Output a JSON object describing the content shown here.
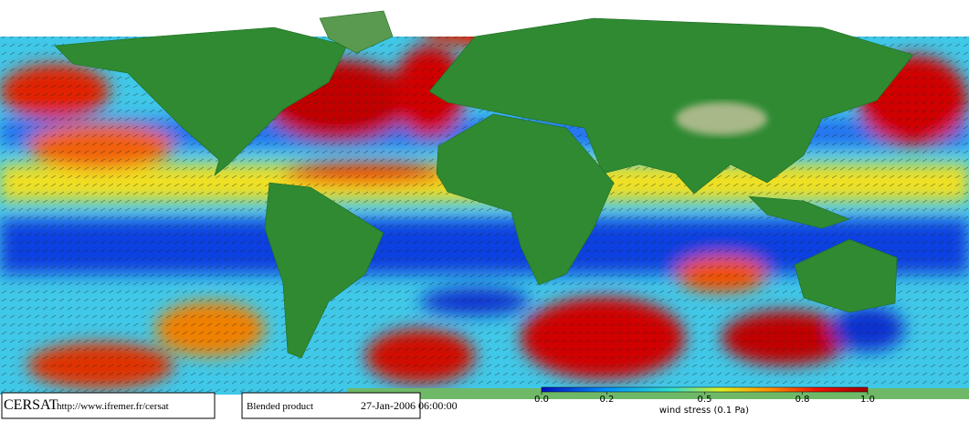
{
  "footer": {
    "logo": "CERSAT",
    "url": "http://www.ifremer.fr/cersat",
    "product": "Blended product",
    "date": "27-Jan-2006 06:00:00"
  },
  "colorbar": {
    "label": "wind stress (0.1 Pa)",
    "lim": [
      0,
      1
    ],
    "ticks": [
      {
        "value": 0,
        "label": "0.0"
      },
      0.2,
      0.5,
      0.8,
      {
        "value": 1,
        "label": "1.0"
      }
    ]
  }
}
